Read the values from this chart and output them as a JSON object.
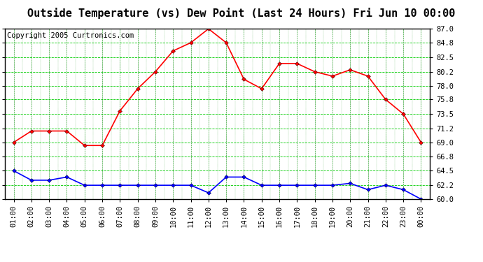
{
  "title": "Outside Temperature (vs) Dew Point (Last 24 Hours) Fri Jun 10 00:00",
  "copyright": "Copyright 2005 Curtronics.com",
  "x_labels": [
    "01:00",
    "02:00",
    "03:00",
    "04:00",
    "05:00",
    "06:00",
    "07:00",
    "08:00",
    "09:00",
    "10:00",
    "11:00",
    "12:00",
    "13:00",
    "14:00",
    "15:00",
    "16:00",
    "17:00",
    "18:00",
    "19:00",
    "20:00",
    "21:00",
    "22:00",
    "23:00",
    "00:00"
  ],
  "temp_data": [
    69.0,
    70.8,
    70.8,
    70.8,
    68.5,
    68.5,
    74.0,
    77.5,
    80.2,
    83.5,
    84.8,
    87.0,
    84.8,
    79.0,
    77.5,
    81.5,
    81.5,
    80.2,
    79.5,
    80.5,
    79.5,
    75.8,
    73.5,
    69.0
  ],
  "dew_data": [
    64.5,
    63.0,
    63.0,
    63.5,
    62.2,
    62.2,
    62.2,
    62.2,
    62.2,
    62.2,
    62.2,
    61.0,
    63.5,
    63.5,
    62.2,
    62.2,
    62.2,
    62.2,
    62.2,
    62.5,
    61.5,
    62.2,
    61.5,
    60.0
  ],
  "temp_color": "#ff0000",
  "dew_color": "#0000ff",
  "bg_color": "#ffffff",
  "plot_bg_color": "#ffffff",
  "grid_color": "#00cc00",
  "ylim_min": 60.0,
  "ylim_max": 87.0,
  "yticks": [
    60.0,
    62.2,
    64.5,
    66.8,
    69.0,
    71.2,
    73.5,
    75.8,
    78.0,
    80.2,
    82.5,
    84.8,
    87.0
  ],
  "title_fontsize": 11,
  "copyright_fontsize": 7.5,
  "tick_fontsize": 7.5,
  "marker": "D",
  "marker_size": 3,
  "line_width": 1.2
}
